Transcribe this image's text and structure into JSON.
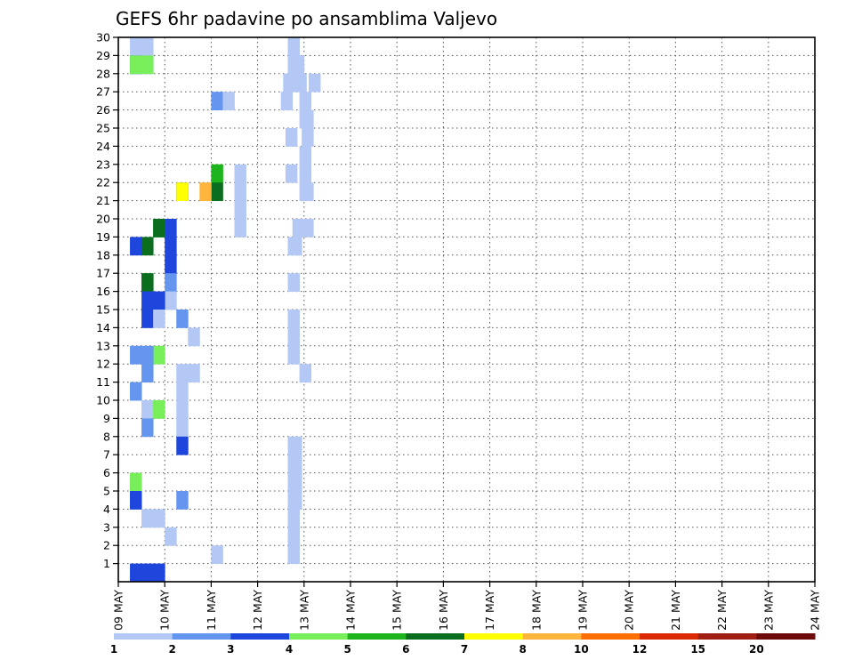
{
  "chart_data": {
    "type": "heatmap",
    "title": "GEFS 6hr padavine po ansamblima Valjevo",
    "xlabel": "",
    "ylabel": "",
    "x_tick_labels": [
      "09 MAY",
      "10 MAY",
      "11 MAY",
      "12 MAY",
      "13 MAY",
      "14 MAY",
      "15 MAY",
      "16 MAY",
      "17 MAY",
      "18 MAY",
      "19 MAY",
      "20 MAY",
      "21 MAY",
      "22 MAY",
      "23 MAY",
      "24 MAY"
    ],
    "x_range": [
      0,
      60
    ],
    "y_tick_labels": [
      "1",
      "2",
      "3",
      "4",
      "5",
      "6",
      "7",
      "8",
      "9",
      "10",
      "11",
      "12",
      "13",
      "14",
      "15",
      "16",
      "17",
      "18",
      "19",
      "20",
      "21",
      "22",
      "23",
      "24",
      "25",
      "26",
      "27",
      "28",
      "29",
      "30"
    ],
    "y_range": [
      0,
      30
    ],
    "grid": true,
    "colorbar": {
      "labels": [
        "1",
        "2",
        "3",
        "4",
        "5",
        "6",
        "7",
        "8",
        "10",
        "12",
        "15",
        "20"
      ],
      "colors": [
        "#b4c8f5",
        "#6496f0",
        "#1e46dc",
        "#78ee5a",
        "#1eb41e",
        "#0a6e1e",
        "#ffff00",
        "#ffb43c",
        "#ff6e00",
        "#dc2800",
        "#a01e14",
        "#6e0a0a"
      ]
    },
    "cells": [
      [
        1,
        29,
        1
      ],
      [
        1,
        29,
        2
      ],
      [
        1,
        28,
        1
      ],
      [
        2,
        28,
        1
      ],
      [
        2,
        28,
        2
      ],
      [
        3,
        28,
        1
      ],
      [
        4,
        28,
        2
      ],
      [
        4,
        28,
        1
      ],
      [
        1,
        22,
        10
      ],
      [
        1,
        21,
        10
      ],
      [
        2,
        26,
        8
      ],
      [
        1,
        26,
        9
      ],
      [
        4,
        22,
        8
      ],
      [
        5,
        22,
        8
      ],
      [
        3,
        21,
        5
      ],
      [
        6,
        21,
        8
      ],
      [
        7,
        21,
        5
      ],
      [
        8,
        21,
        7
      ],
      [
        1,
        20,
        10
      ],
      [
        1,
        19,
        10
      ],
      [
        3,
        19,
        4
      ],
      [
        3,
        18,
        4
      ],
      [
        3,
        17,
        4
      ],
      [
        2,
        16,
        4
      ],
      [
        1,
        15,
        4
      ],
      [
        2,
        14,
        5
      ],
      [
        3,
        14,
        2
      ],
      [
        1,
        11,
        6
      ],
      [
        1,
        11,
        5
      ],
      [
        1,
        10,
        5
      ],
      [
        1,
        9,
        5
      ],
      [
        1,
        8,
        5
      ],
      [
        5,
        19,
        3
      ],
      [
        6,
        19,
        3
      ],
      [
        6,
        18,
        2
      ],
      [
        3,
        18,
        1
      ],
      [
        5,
        16,
        2
      ],
      [
        6,
        16,
        2
      ],
      [
        3,
        15,
        2
      ],
      [
        3,
        15,
        3
      ],
      [
        1,
        14,
        3
      ],
      [
        1,
        13,
        6
      ],
      [
        4,
        12,
        3
      ],
      [
        2,
        12,
        2
      ],
      [
        2,
        12,
        1
      ],
      [
        2,
        11,
        2
      ],
      [
        1,
        10,
        1
      ],
      [
        2,
        10,
        1
      ],
      [
        1,
        9,
        2
      ],
      [
        4,
        9,
        3
      ],
      [
        2,
        8,
        2
      ],
      [
        3,
        7,
        5
      ],
      [
        1,
        5,
        1
      ],
      [
        4,
        5,
        1
      ],
      [
        1,
        4,
        1
      ],
      [
        3,
        4,
        1
      ],
      [
        2,
        4,
        5
      ],
      [
        1,
        3,
        3
      ],
      [
        1,
        3,
        2
      ],
      [
        1,
        2,
        4
      ],
      [
        1,
        1,
        8
      ],
      [
        3,
        0,
        2
      ],
      [
        3,
        0,
        3
      ],
      [
        3,
        0,
        1
      ],
      [
        1,
        26,
        14
      ]
    ],
    "cells_extra": [
      [
        1,
        29,
        14.6
      ],
      [
        1,
        28,
        14.6
      ],
      [
        1,
        28,
        15
      ],
      [
        1,
        27,
        14.2
      ],
      [
        1,
        27,
        15.2
      ],
      [
        1,
        27,
        16.4
      ],
      [
        1,
        26,
        15.6
      ],
      [
        1,
        25,
        15.6
      ],
      [
        1,
        25,
        15.8
      ],
      [
        1,
        24,
        15.8
      ],
      [
        1,
        23,
        15.6
      ],
      [
        1,
        22,
        15.6
      ],
      [
        1,
        21,
        15.6
      ],
      [
        1,
        21,
        15.8
      ],
      [
        1,
        19,
        15
      ],
      [
        1,
        19,
        15.8
      ],
      [
        1,
        18,
        14.6
      ],
      [
        1,
        16,
        14.6
      ],
      [
        1,
        12,
        14.6
      ],
      [
        1,
        11,
        15.6
      ],
      [
        1,
        7,
        14.6
      ],
      [
        1,
        7,
        14.8
      ],
      [
        1,
        6,
        14.6
      ],
      [
        1,
        6,
        14.8
      ],
      [
        1,
        5,
        14.6
      ],
      [
        1,
        5,
        14.8
      ],
      [
        1,
        4,
        14.6
      ],
      [
        1,
        4,
        14.8
      ],
      [
        1,
        3,
        14.6
      ],
      [
        1,
        2,
        14.6
      ],
      [
        1,
        1,
        14.6
      ],
      [
        1,
        14,
        14.6
      ],
      [
        1,
        13,
        14.6
      ],
      [
        1,
        18,
        14.8
      ],
      [
        1,
        22,
        14.4
      ],
      [
        1,
        24,
        14.4
      ]
    ]
  }
}
